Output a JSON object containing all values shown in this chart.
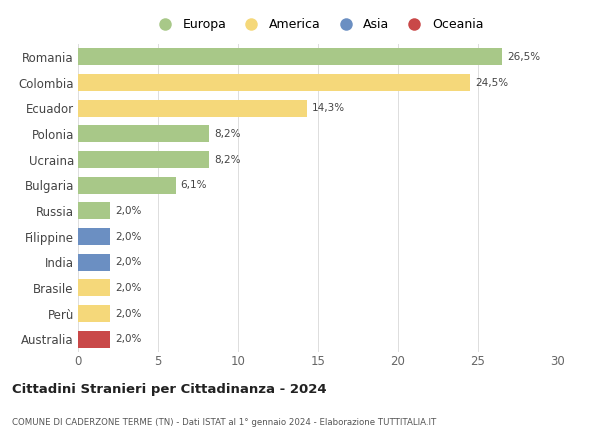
{
  "countries": [
    "Romania",
    "Colombia",
    "Ecuador",
    "Polonia",
    "Ucraina",
    "Bulgaria",
    "Russia",
    "Filippine",
    "India",
    "Brasile",
    "Perù",
    "Australia"
  ],
  "values": [
    26.5,
    24.5,
    14.3,
    8.2,
    8.2,
    6.1,
    2.0,
    2.0,
    2.0,
    2.0,
    2.0,
    2.0
  ],
  "labels": [
    "26,5%",
    "24,5%",
    "14,3%",
    "8,2%",
    "8,2%",
    "6,1%",
    "2,0%",
    "2,0%",
    "2,0%",
    "2,0%",
    "2,0%",
    "2,0%"
  ],
  "colors": [
    "#a8c888",
    "#f5d87a",
    "#f5d87a",
    "#a8c888",
    "#a8c888",
    "#a8c888",
    "#a8c888",
    "#6b8fc2",
    "#6b8fc2",
    "#f5d87a",
    "#f5d87a",
    "#c94848"
  ],
  "legend_labels": [
    "Europa",
    "America",
    "Asia",
    "Oceania"
  ],
  "legend_colors": [
    "#a8c888",
    "#f5d87a",
    "#6b8fc2",
    "#c94848"
  ],
  "title": "Cittadini Stranieri per Cittadinanza - 2024",
  "subtitle": "COMUNE DI CADERZONE TERME (TN) - Dati ISTAT al 1° gennaio 2024 - Elaborazione TUTTITALIA.IT",
  "xlim": [
    0,
    30
  ],
  "xticks": [
    0,
    5,
    10,
    15,
    20,
    25,
    30
  ],
  "background_color": "#ffffff",
  "bar_height": 0.65
}
